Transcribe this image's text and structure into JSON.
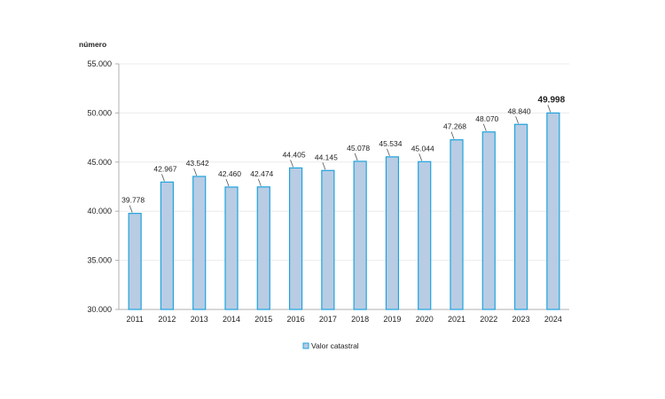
{
  "chart_data": {
    "type": "bar",
    "ylabel": "número",
    "categories": [
      "2011",
      "2012",
      "2013",
      "2014",
      "2015",
      "2016",
      "2017",
      "2018",
      "2019",
      "2020",
      "2021",
      "2022",
      "2023",
      "2024"
    ],
    "series": [
      {
        "name": "Valor catastral",
        "values": [
          39778,
          42967,
          43542,
          42460,
          42474,
          44405,
          44145,
          45078,
          45534,
          45044,
          47268,
          48070,
          48840,
          49998
        ],
        "labels": [
          "39.778",
          "42.967",
          "43.542",
          "42.460",
          "42.474",
          "44.405",
          "44.145",
          "45.078",
          "45.534",
          "45.044",
          "47.268",
          "48.070",
          "48.840",
          "49.998"
        ]
      }
    ],
    "ylim": [
      30000,
      55000
    ],
    "yticks": [
      {
        "value": 30000,
        "label": "30.000"
      },
      {
        "value": 35000,
        "label": "35.000"
      },
      {
        "value": 40000,
        "label": "40.000"
      },
      {
        "value": 45000,
        "label": "45.000"
      },
      {
        "value": 50000,
        "label": "50.000"
      },
      {
        "value": 55000,
        "label": "55.000"
      }
    ],
    "grid": true,
    "legend": "bottom-center",
    "highlight_last_label": true,
    "colors": {
      "bar_fill": "#b8cce4",
      "bar_stroke": "#1fa3dc",
      "axis": "#b0b0b0",
      "grid": "#ececec"
    }
  }
}
